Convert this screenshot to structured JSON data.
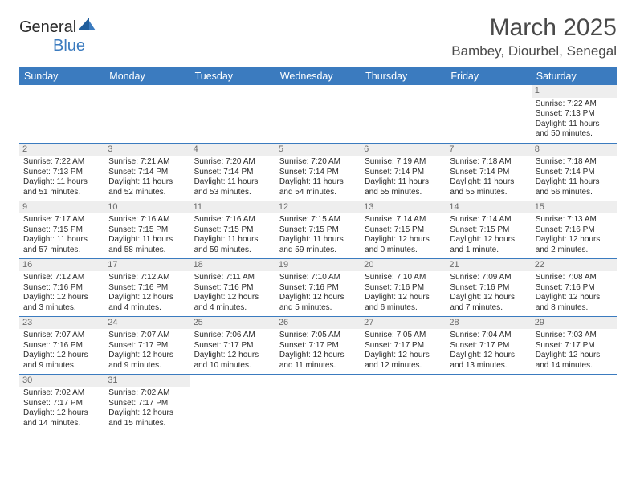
{
  "logo": {
    "text1": "General",
    "text2": "Blue"
  },
  "title": "March 2025",
  "location": "Bambey, Diourbel, Senegal",
  "daysOfWeek": [
    "Sunday",
    "Monday",
    "Tuesday",
    "Wednesday",
    "Thursday",
    "Friday",
    "Saturday"
  ],
  "colors": {
    "headerBg": "#3b7bbf",
    "dayNumBg": "#eeeeee",
    "border": "#3b7bbf",
    "text": "#2b2b2b",
    "titleText": "#494949"
  },
  "weeks": [
    [
      null,
      null,
      null,
      null,
      null,
      null,
      {
        "n": "1",
        "sunrise": "Sunrise: 7:22 AM",
        "sunset": "Sunset: 7:13 PM",
        "daylight": "Daylight: 11 hours and 50 minutes."
      }
    ],
    [
      {
        "n": "2",
        "sunrise": "Sunrise: 7:22 AM",
        "sunset": "Sunset: 7:13 PM",
        "daylight": "Daylight: 11 hours and 51 minutes."
      },
      {
        "n": "3",
        "sunrise": "Sunrise: 7:21 AM",
        "sunset": "Sunset: 7:14 PM",
        "daylight": "Daylight: 11 hours and 52 minutes."
      },
      {
        "n": "4",
        "sunrise": "Sunrise: 7:20 AM",
        "sunset": "Sunset: 7:14 PM",
        "daylight": "Daylight: 11 hours and 53 minutes."
      },
      {
        "n": "5",
        "sunrise": "Sunrise: 7:20 AM",
        "sunset": "Sunset: 7:14 PM",
        "daylight": "Daylight: 11 hours and 54 minutes."
      },
      {
        "n": "6",
        "sunrise": "Sunrise: 7:19 AM",
        "sunset": "Sunset: 7:14 PM",
        "daylight": "Daylight: 11 hours and 55 minutes."
      },
      {
        "n": "7",
        "sunrise": "Sunrise: 7:18 AM",
        "sunset": "Sunset: 7:14 PM",
        "daylight": "Daylight: 11 hours and 55 minutes."
      },
      {
        "n": "8",
        "sunrise": "Sunrise: 7:18 AM",
        "sunset": "Sunset: 7:14 PM",
        "daylight": "Daylight: 11 hours and 56 minutes."
      }
    ],
    [
      {
        "n": "9",
        "sunrise": "Sunrise: 7:17 AM",
        "sunset": "Sunset: 7:15 PM",
        "daylight": "Daylight: 11 hours and 57 minutes."
      },
      {
        "n": "10",
        "sunrise": "Sunrise: 7:16 AM",
        "sunset": "Sunset: 7:15 PM",
        "daylight": "Daylight: 11 hours and 58 minutes."
      },
      {
        "n": "11",
        "sunrise": "Sunrise: 7:16 AM",
        "sunset": "Sunset: 7:15 PM",
        "daylight": "Daylight: 11 hours and 59 minutes."
      },
      {
        "n": "12",
        "sunrise": "Sunrise: 7:15 AM",
        "sunset": "Sunset: 7:15 PM",
        "daylight": "Daylight: 11 hours and 59 minutes."
      },
      {
        "n": "13",
        "sunrise": "Sunrise: 7:14 AM",
        "sunset": "Sunset: 7:15 PM",
        "daylight": "Daylight: 12 hours and 0 minutes."
      },
      {
        "n": "14",
        "sunrise": "Sunrise: 7:14 AM",
        "sunset": "Sunset: 7:15 PM",
        "daylight": "Daylight: 12 hours and 1 minute."
      },
      {
        "n": "15",
        "sunrise": "Sunrise: 7:13 AM",
        "sunset": "Sunset: 7:16 PM",
        "daylight": "Daylight: 12 hours and 2 minutes."
      }
    ],
    [
      {
        "n": "16",
        "sunrise": "Sunrise: 7:12 AM",
        "sunset": "Sunset: 7:16 PM",
        "daylight": "Daylight: 12 hours and 3 minutes."
      },
      {
        "n": "17",
        "sunrise": "Sunrise: 7:12 AM",
        "sunset": "Sunset: 7:16 PM",
        "daylight": "Daylight: 12 hours and 4 minutes."
      },
      {
        "n": "18",
        "sunrise": "Sunrise: 7:11 AM",
        "sunset": "Sunset: 7:16 PM",
        "daylight": "Daylight: 12 hours and 4 minutes."
      },
      {
        "n": "19",
        "sunrise": "Sunrise: 7:10 AM",
        "sunset": "Sunset: 7:16 PM",
        "daylight": "Daylight: 12 hours and 5 minutes."
      },
      {
        "n": "20",
        "sunrise": "Sunrise: 7:10 AM",
        "sunset": "Sunset: 7:16 PM",
        "daylight": "Daylight: 12 hours and 6 minutes."
      },
      {
        "n": "21",
        "sunrise": "Sunrise: 7:09 AM",
        "sunset": "Sunset: 7:16 PM",
        "daylight": "Daylight: 12 hours and 7 minutes."
      },
      {
        "n": "22",
        "sunrise": "Sunrise: 7:08 AM",
        "sunset": "Sunset: 7:16 PM",
        "daylight": "Daylight: 12 hours and 8 minutes."
      }
    ],
    [
      {
        "n": "23",
        "sunrise": "Sunrise: 7:07 AM",
        "sunset": "Sunset: 7:16 PM",
        "daylight": "Daylight: 12 hours and 9 minutes."
      },
      {
        "n": "24",
        "sunrise": "Sunrise: 7:07 AM",
        "sunset": "Sunset: 7:17 PM",
        "daylight": "Daylight: 12 hours and 9 minutes."
      },
      {
        "n": "25",
        "sunrise": "Sunrise: 7:06 AM",
        "sunset": "Sunset: 7:17 PM",
        "daylight": "Daylight: 12 hours and 10 minutes."
      },
      {
        "n": "26",
        "sunrise": "Sunrise: 7:05 AM",
        "sunset": "Sunset: 7:17 PM",
        "daylight": "Daylight: 12 hours and 11 minutes."
      },
      {
        "n": "27",
        "sunrise": "Sunrise: 7:05 AM",
        "sunset": "Sunset: 7:17 PM",
        "daylight": "Daylight: 12 hours and 12 minutes."
      },
      {
        "n": "28",
        "sunrise": "Sunrise: 7:04 AM",
        "sunset": "Sunset: 7:17 PM",
        "daylight": "Daylight: 12 hours and 13 minutes."
      },
      {
        "n": "29",
        "sunrise": "Sunrise: 7:03 AM",
        "sunset": "Sunset: 7:17 PM",
        "daylight": "Daylight: 12 hours and 14 minutes."
      }
    ],
    [
      {
        "n": "30",
        "sunrise": "Sunrise: 7:02 AM",
        "sunset": "Sunset: 7:17 PM",
        "daylight": "Daylight: 12 hours and 14 minutes."
      },
      {
        "n": "31",
        "sunrise": "Sunrise: 7:02 AM",
        "sunset": "Sunset: 7:17 PM",
        "daylight": "Daylight: 12 hours and 15 minutes."
      },
      null,
      null,
      null,
      null,
      null
    ]
  ]
}
